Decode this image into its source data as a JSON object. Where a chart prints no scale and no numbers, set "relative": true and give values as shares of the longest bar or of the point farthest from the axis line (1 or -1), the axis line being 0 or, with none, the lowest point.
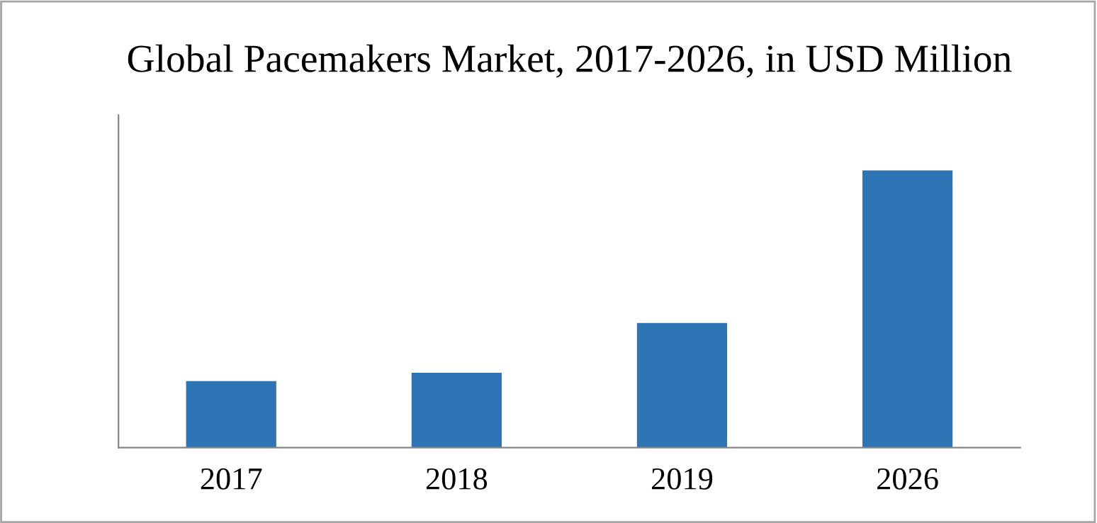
{
  "chart_data": {
    "type": "bar",
    "title": "Global Pacemakers Market, 2017-2026, in USD Million",
    "categories": [
      "2017",
      "2018",
      "2019",
      "2026"
    ],
    "values": [
      0.24,
      0.27,
      0.45,
      1
    ],
    "color": "#2e75b6",
    "relative": true,
    "grid": false,
    "legend": false
  }
}
